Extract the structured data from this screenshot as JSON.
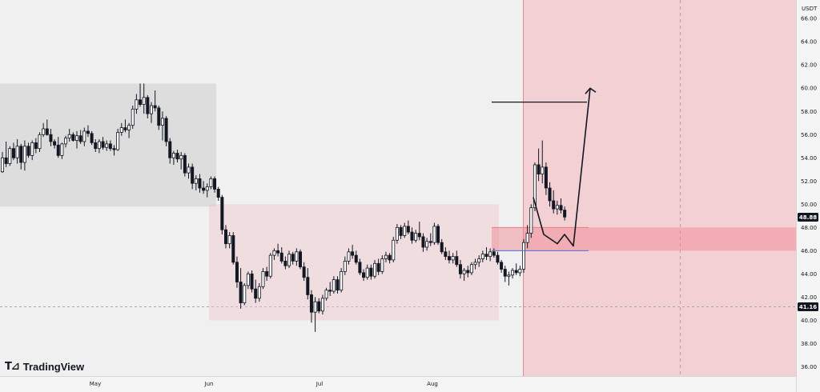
{
  "chart_data": {
    "type": "candlestick",
    "currency": "USDT",
    "y_ticks": [
      "36.00",
      "38.00",
      "40.00",
      "42.00",
      "44.00",
      "46.00",
      "48.00",
      "50.00",
      "52.00",
      "54.00",
      "56.00",
      "58.00",
      "60.00",
      "62.00",
      "64.00",
      "66.00"
    ],
    "x_ticks": [
      "May",
      "Jun",
      "Jul",
      "Aug"
    ],
    "ylim": [
      35.2,
      67.6
    ],
    "price_labels": {
      "current": "48.88",
      "reference": "41.16"
    },
    "zones": {
      "gray_range": {
        "y_top": 60.4,
        "y_bottom": 49.8
      },
      "pink_range": {
        "y_top": 50.0,
        "y_bottom": 40.0
      },
      "target_zone": {
        "y_top": 48.0,
        "y_bottom": 46.0
      }
    },
    "levels": {
      "target_line": 58.8,
      "support_line": 46.0
    },
    "projection": [
      50.6,
      47.4,
      46.6,
      47.4,
      46.4,
      60.0
    ],
    "candles": [
      [
        52.8,
        54.5,
        52.7,
        54.0
      ],
      [
        54.0,
        55.4,
        53.2,
        53.5
      ],
      [
        53.5,
        55.0,
        53.3,
        54.8
      ],
      [
        54.8,
        55.3,
        53.8,
        54.0
      ],
      [
        54.0,
        55.6,
        53.5,
        55.0
      ],
      [
        55.0,
        55.2,
        53.0,
        53.6
      ],
      [
        53.6,
        55.5,
        52.9,
        55.0
      ],
      [
        55.0,
        55.3,
        54.0,
        54.2
      ],
      [
        54.2,
        55.5,
        53.8,
        55.3
      ],
      [
        55.3,
        55.7,
        54.4,
        54.8
      ],
      [
        54.8,
        56.2,
        54.5,
        56.0
      ],
      [
        56.0,
        57.0,
        55.8,
        56.5
      ],
      [
        56.5,
        57.3,
        55.9,
        56.0
      ],
      [
        56.0,
        56.5,
        55.0,
        55.4
      ],
      [
        55.4,
        55.6,
        54.8,
        55.1
      ],
      [
        55.1,
        55.8,
        54.0,
        54.2
      ],
      [
        54.2,
        55.3,
        53.9,
        55.2
      ],
      [
        55.2,
        55.9,
        54.9,
        55.7
      ],
      [
        55.7,
        56.5,
        55.4,
        56.0
      ],
      [
        56.0,
        56.2,
        55.4,
        55.5
      ],
      [
        55.5,
        56.3,
        54.8,
        55.9
      ],
      [
        55.9,
        56.4,
        55.2,
        55.4
      ],
      [
        55.4,
        56.6,
        55.0,
        56.3
      ],
      [
        56.3,
        56.8,
        55.8,
        56.1
      ],
      [
        56.1,
        56.3,
        55.1,
        55.3
      ],
      [
        55.3,
        55.6,
        54.5,
        54.8
      ],
      [
        54.8,
        55.6,
        54.4,
        55.4
      ],
      [
        55.4,
        55.8,
        54.7,
        54.9
      ],
      [
        54.9,
        55.5,
        54.6,
        55.2
      ],
      [
        55.2,
        55.5,
        54.6,
        54.8
      ],
      [
        54.8,
        55.1,
        54.2,
        54.7
      ],
      [
        54.7,
        56.5,
        54.6,
        56.2
      ],
      [
        56.2,
        57.0,
        55.9,
        56.6
      ],
      [
        56.6,
        57.3,
        56.2,
        56.4
      ],
      [
        56.4,
        57.0,
        55.7,
        56.8
      ],
      [
        56.8,
        58.5,
        56.5,
        58.2
      ],
      [
        58.2,
        59.5,
        57.8,
        59.0
      ],
      [
        59.0,
        60.4,
        58.4,
        58.6
      ],
      [
        58.6,
        60.4,
        57.8,
        59.2
      ],
      [
        59.2,
        59.4,
        57.4,
        57.8
      ],
      [
        57.8,
        58.8,
        57.0,
        58.5
      ],
      [
        58.5,
        59.8,
        58.0,
        58.3
      ],
      [
        58.3,
        58.5,
        56.4,
        56.8
      ],
      [
        56.8,
        58.0,
        55.5,
        57.4
      ],
      [
        57.4,
        57.6,
        55.0,
        55.4
      ],
      [
        55.4,
        55.7,
        53.5,
        54.0
      ],
      [
        54.0,
        54.6,
        53.4,
        54.4
      ],
      [
        54.4,
        54.7,
        53.6,
        53.9
      ],
      [
        53.9,
        54.5,
        53.0,
        54.2
      ],
      [
        54.2,
        54.4,
        52.4,
        52.7
      ],
      [
        52.7,
        53.5,
        52.2,
        53.2
      ],
      [
        53.2,
        53.5,
        51.3,
        51.8
      ],
      [
        51.8,
        52.5,
        51.2,
        52.2
      ],
      [
        52.2,
        52.6,
        51.0,
        51.4
      ],
      [
        51.4,
        52.0,
        50.9,
        51.2
      ],
      [
        51.2,
        51.8,
        50.6,
        51.5
      ],
      [
        51.5,
        52.4,
        51.3,
        52.2
      ],
      [
        52.2,
        52.4,
        51.0,
        51.3
      ],
      [
        51.3,
        51.5,
        50.3,
        50.6
      ],
      [
        50.6,
        50.8,
        47.4,
        47.8
      ],
      [
        47.8,
        48.2,
        46.2,
        46.6
      ],
      [
        46.6,
        47.6,
        46.2,
        47.3
      ],
      [
        47.3,
        47.6,
        44.8,
        45.0
      ],
      [
        45.0,
        45.5,
        42.8,
        43.3
      ],
      [
        43.3,
        44.5,
        41.0,
        41.5
      ],
      [
        41.5,
        43.2,
        41.3,
        43.0
      ],
      [
        43.0,
        44.2,
        42.7,
        44.0
      ],
      [
        44.0,
        44.3,
        42.4,
        42.7
      ],
      [
        42.7,
        43.5,
        41.5,
        41.9
      ],
      [
        41.9,
        43.2,
        41.6,
        42.9
      ],
      [
        42.9,
        44.5,
        42.7,
        44.2
      ],
      [
        44.2,
        44.6,
        43.4,
        43.8
      ],
      [
        43.8,
        45.8,
        43.6,
        45.6
      ],
      [
        45.6,
        46.2,
        45.2,
        46.0
      ],
      [
        46.0,
        46.6,
        45.5,
        45.8
      ],
      [
        45.8,
        46.3,
        44.9,
        45.1
      ],
      [
        45.1,
        45.5,
        44.4,
        44.7
      ],
      [
        44.7,
        46.0,
        44.5,
        45.7
      ],
      [
        45.7,
        45.9,
        44.8,
        45.1
      ],
      [
        45.1,
        46.2,
        44.7,
        45.9
      ],
      [
        45.9,
        46.1,
        44.4,
        44.6
      ],
      [
        44.6,
        45.0,
        43.4,
        43.7
      ],
      [
        43.7,
        44.5,
        41.8,
        42.2
      ],
      [
        42.2,
        42.6,
        39.8,
        40.7
      ],
      [
        40.7,
        42.0,
        39.0,
        41.6
      ],
      [
        41.6,
        41.9,
        40.6,
        40.8
      ],
      [
        40.8,
        42.2,
        40.5,
        41.9
      ],
      [
        41.9,
        42.8,
        41.7,
        42.6
      ],
      [
        42.6,
        43.3,
        42.1,
        42.5
      ],
      [
        42.5,
        43.8,
        42.3,
        43.5
      ],
      [
        43.5,
        43.8,
        42.3,
        42.6
      ],
      [
        42.6,
        44.5,
        42.4,
        44.2
      ],
      [
        44.2,
        45.5,
        43.9,
        45.1
      ],
      [
        45.1,
        46.2,
        44.8,
        45.9
      ],
      [
        45.9,
        46.5,
        45.3,
        45.6
      ],
      [
        45.6,
        46.0,
        44.8,
        45.0
      ],
      [
        45.0,
        45.3,
        43.9,
        44.1
      ],
      [
        44.1,
        44.4,
        43.4,
        43.7
      ],
      [
        43.7,
        44.8,
        43.5,
        44.5
      ],
      [
        44.5,
        44.8,
        43.5,
        43.8
      ],
      [
        43.8,
        45.2,
        43.6,
        44.9
      ],
      [
        44.9,
        45.3,
        43.9,
        44.2
      ],
      [
        44.2,
        45.6,
        44.0,
        45.3
      ],
      [
        45.3,
        45.9,
        45.0,
        45.6
      ],
      [
        45.6,
        45.8,
        44.9,
        45.2
      ],
      [
        45.2,
        47.2,
        45.0,
        46.9
      ],
      [
        46.9,
        48.3,
        46.6,
        48.0
      ],
      [
        48.0,
        48.2,
        47.0,
        47.3
      ],
      [
        47.3,
        48.4,
        47.1,
        48.1
      ],
      [
        48.1,
        48.6,
        47.4,
        47.6
      ],
      [
        47.6,
        48.0,
        46.6,
        46.9
      ],
      [
        46.9,
        47.8,
        46.7,
        47.5
      ],
      [
        47.5,
        48.5,
        46.9,
        47.2
      ],
      [
        47.2,
        47.5,
        45.9,
        46.3
      ],
      [
        46.3,
        47.1,
        46.0,
        46.8
      ],
      [
        46.8,
        47.5,
        46.4,
        46.7
      ],
      [
        46.7,
        48.4,
        46.5,
        48.1
      ],
      [
        48.1,
        48.3,
        46.5,
        46.7
      ],
      [
        46.7,
        47.0,
        45.7,
        45.9
      ],
      [
        45.9,
        46.3,
        45.2,
        45.5
      ],
      [
        45.5,
        46.0,
        44.9,
        45.2
      ],
      [
        45.2,
        45.8,
        44.9,
        45.5
      ],
      [
        45.5,
        46.0,
        44.6,
        44.8
      ],
      [
        44.8,
        45.2,
        43.6,
        44.0
      ],
      [
        44.0,
        44.5,
        43.4,
        44.3
      ],
      [
        44.3,
        44.7,
        43.7,
        44.1
      ],
      [
        44.1,
        45.0,
        43.9,
        44.8
      ],
      [
        44.8,
        45.3,
        44.4,
        45.0
      ],
      [
        45.0,
        45.6,
        44.6,
        45.3
      ],
      [
        45.3,
        46.0,
        45.0,
        45.7
      ],
      [
        45.7,
        46.3,
        45.2,
        45.5
      ],
      [
        45.5,
        46.2,
        45.1,
        45.9
      ],
      [
        45.9,
        46.2,
        45.4,
        45.6
      ],
      [
        45.6,
        45.9,
        44.8,
        45.0
      ],
      [
        45.0,
        45.2,
        44.1,
        44.4
      ],
      [
        44.4,
        44.7,
        43.3,
        43.8
      ],
      [
        43.8,
        44.2,
        43.0,
        43.9
      ],
      [
        43.9,
        44.5,
        43.6,
        44.3
      ],
      [
        44.3,
        44.9,
        43.9,
        44.1
      ],
      [
        44.1,
        44.7,
        43.8,
        44.4
      ],
      [
        44.4,
        47.0,
        44.1,
        46.7
      ],
      [
        46.7,
        48.2,
        46.2,
        47.5
      ],
      [
        47.5,
        50.0,
        47.1,
        49.7
      ],
      [
        49.7,
        53.6,
        49.4,
        53.4
      ],
      [
        53.4,
        54.8,
        52.0,
        52.6
      ],
      [
        52.6,
        55.5,
        51.8,
        53.2
      ],
      [
        53.2,
        53.6,
        50.8,
        51.4
      ],
      [
        51.4,
        51.9,
        49.8,
        50.3
      ],
      [
        50.3,
        51.2,
        49.2,
        49.6
      ],
      [
        49.6,
        50.3,
        49.1,
        49.9
      ],
      [
        49.9,
        50.5,
        49.2,
        49.5
      ],
      [
        49.5,
        49.8,
        48.6,
        48.9
      ]
    ]
  }
}
